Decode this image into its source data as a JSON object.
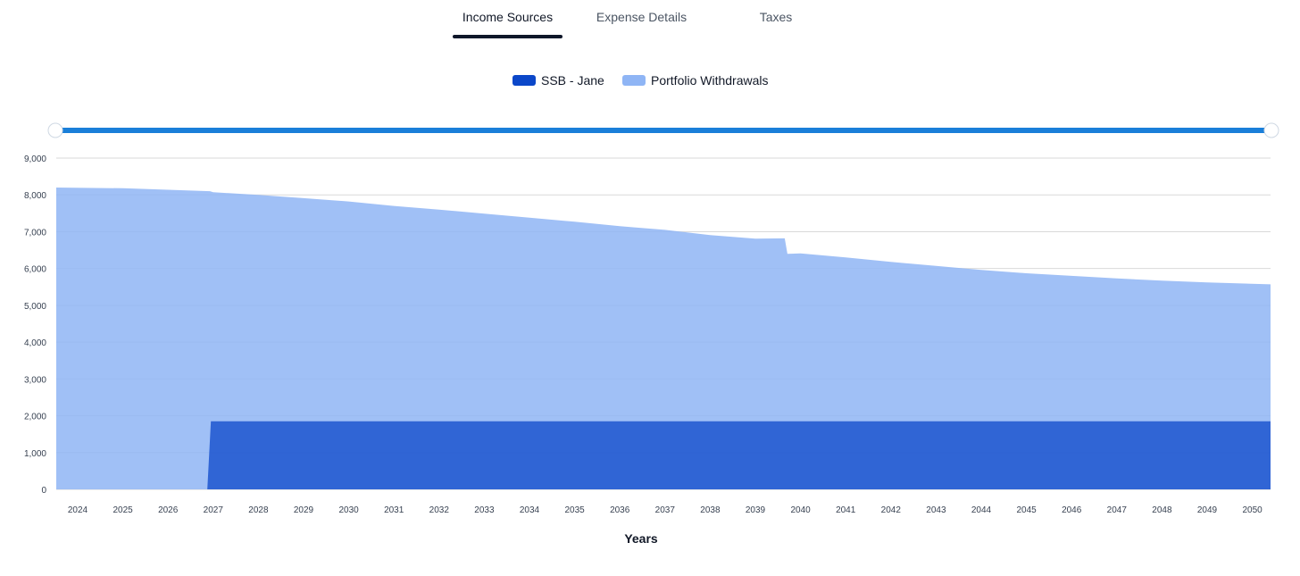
{
  "tabs": [
    {
      "label": "Income Sources",
      "active": true
    },
    {
      "label": "Expense Details",
      "active": false
    },
    {
      "label": "Taxes",
      "active": false
    }
  ],
  "colors": {
    "ssb": "#0b47c9",
    "portfolio": "#8fb5f5",
    "slider": "#1a7fd9",
    "grid": "#d9d9d9"
  },
  "chart_data": {
    "type": "area",
    "stacked": true,
    "xlabel": "Years",
    "ylabel": "",
    "ylim": [
      0,
      9000
    ],
    "yticks": [
      "0",
      "1,000",
      "2,000",
      "3,000",
      "4,000",
      "5,000",
      "6,000",
      "7,000",
      "8,000",
      "9,000"
    ],
    "ytick_values": [
      0,
      1000,
      2000,
      3000,
      4000,
      5000,
      6000,
      7000,
      8000,
      9000
    ],
    "x": [
      "2024",
      "2025",
      "2026",
      "2027",
      "2028",
      "2029",
      "2030",
      "2031",
      "2032",
      "2033",
      "2034",
      "2035",
      "2036",
      "2037",
      "2038",
      "2039",
      "2040",
      "2041",
      "2042",
      "2043",
      "2044",
      "2045",
      "2046",
      "2047",
      "2048",
      "2049",
      "2050"
    ],
    "series": [
      {
        "name": "SSB - Jane",
        "values": [
          0,
          0,
          0,
          1850,
          1850,
          1850,
          1850,
          1850,
          1850,
          1850,
          1850,
          1850,
          1850,
          1850,
          1850,
          1850,
          1850,
          1850,
          1850,
          1850,
          1850,
          1850,
          1850,
          1850,
          1850,
          1850,
          1850
        ]
      },
      {
        "name": "Portfolio Withdrawals",
        "values": [
          8200,
          8180,
          8140,
          6220,
          6150,
          6060,
          5970,
          5850,
          5750,
          5640,
          5530,
          5420,
          5300,
          5200,
          5060,
          4960,
          4560,
          4450,
          4330,
          4220,
          4110,
          4020,
          3950,
          3880,
          3820,
          3770,
          3720
        ]
      }
    ],
    "total_curve": {
      "breakpoint_year_fraction": 15.65,
      "before_break_value": 6820,
      "after_break_value": 6400
    },
    "range_slider": {
      "start": "2024",
      "end": "2050"
    }
  }
}
